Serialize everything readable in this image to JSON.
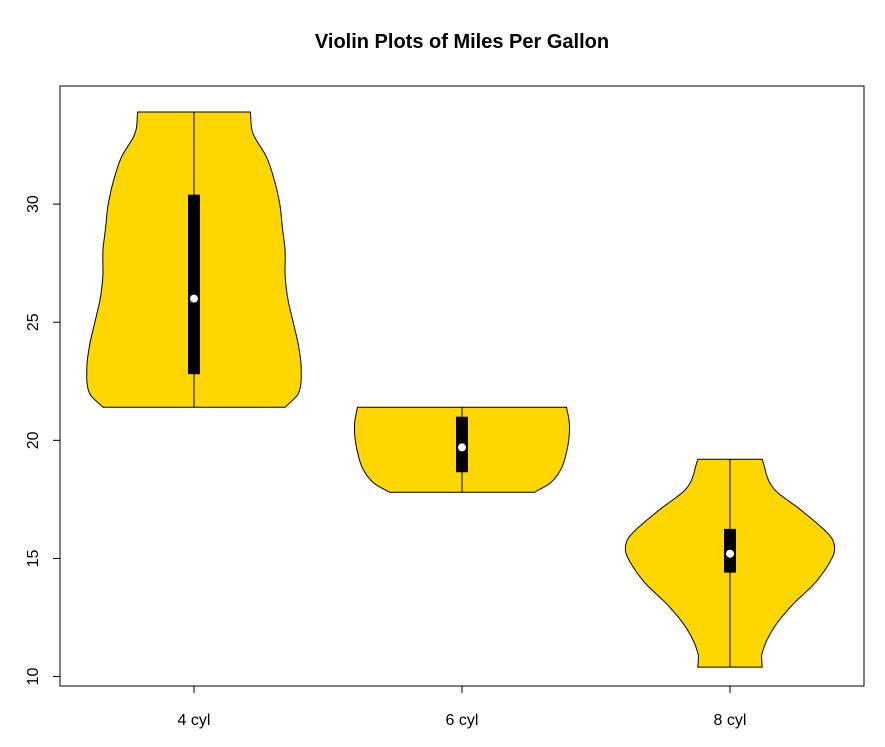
{
  "chart_data": {
    "type": "violin",
    "title": "Violin Plots of Miles Per Gallon",
    "xlabel": "",
    "ylabel": "",
    "categories": [
      "4 cyl",
      "6 cyl",
      "8 cyl"
    ],
    "ylim": [
      9.6,
      35.0
    ],
    "yticks": [
      10,
      15,
      20,
      25,
      30
    ],
    "grid": false,
    "fill_color": "#FFD700",
    "box_color": "#000000",
    "median_color": "#FFFFFF",
    "violins": [
      {
        "category": "4 cyl",
        "min": 21.4,
        "q1": 22.8,
        "median": 26.0,
        "q3": 30.4,
        "max": 33.9,
        "profile": [
          [
            21.4,
            0.34
          ],
          [
            22.0,
            0.39
          ],
          [
            23.0,
            0.4
          ],
          [
            24.0,
            0.39
          ],
          [
            25.0,
            0.37
          ],
          [
            26.0,
            0.35
          ],
          [
            27.0,
            0.34
          ],
          [
            28.0,
            0.34
          ],
          [
            29.0,
            0.33
          ],
          [
            30.0,
            0.32
          ],
          [
            31.0,
            0.3
          ],
          [
            32.0,
            0.27
          ],
          [
            33.0,
            0.22
          ],
          [
            33.9,
            0.21
          ]
        ]
      },
      {
        "category": "6 cyl",
        "min": 17.8,
        "q1": 18.65,
        "median": 19.7,
        "q3": 21.0,
        "max": 21.4,
        "profile": [
          [
            17.8,
            0.27
          ],
          [
            18.2,
            0.33
          ],
          [
            18.8,
            0.37
          ],
          [
            19.5,
            0.39
          ],
          [
            20.2,
            0.4
          ],
          [
            20.8,
            0.4
          ],
          [
            21.4,
            0.39
          ]
        ]
      },
      {
        "category": "8 cyl",
        "min": 10.4,
        "q1": 14.4,
        "median": 15.2,
        "q3": 16.25,
        "max": 19.2,
        "profile": [
          [
            10.4,
            0.12
          ],
          [
            11.0,
            0.12
          ],
          [
            12.0,
            0.16
          ],
          [
            13.0,
            0.23
          ],
          [
            14.0,
            0.32
          ],
          [
            15.0,
            0.38
          ],
          [
            15.5,
            0.39
          ],
          [
            16.0,
            0.37
          ],
          [
            17.0,
            0.27
          ],
          [
            18.0,
            0.16
          ],
          [
            19.2,
            0.12
          ]
        ]
      }
    ]
  }
}
